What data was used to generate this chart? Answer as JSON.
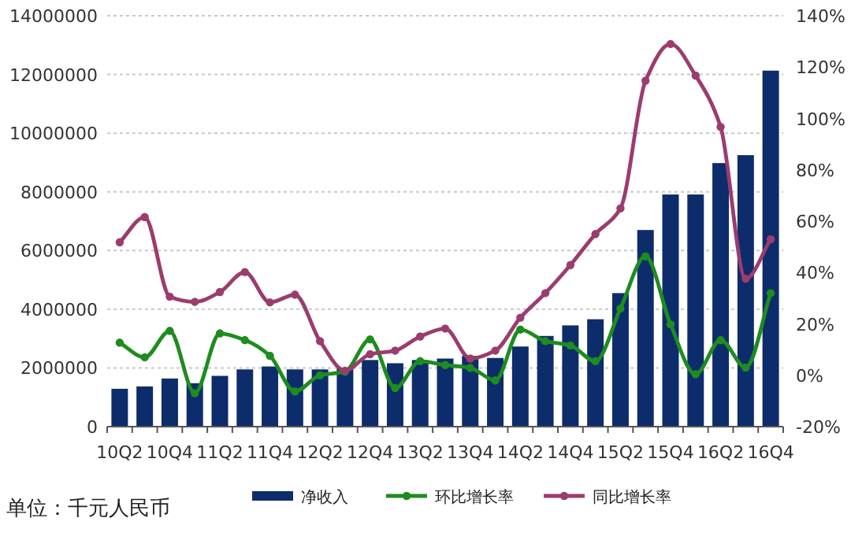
{
  "chart_data": {
    "type": "bar",
    "categories": [
      "10Q2",
      null,
      "10Q4",
      null,
      "11Q2",
      null,
      "11Q4",
      null,
      "12Q2",
      null,
      "12Q4",
      null,
      "13Q2",
      null,
      "13Q4",
      null,
      "14Q2",
      null,
      "14Q4",
      null,
      "15Q2",
      null,
      "15Q4",
      null,
      "16Q2",
      null,
      "16Q4"
    ],
    "series": [
      {
        "name": "净收入",
        "color": "#0d2c6b",
        "values": [
          1290000,
          1370000,
          1640000,
          1480000,
          1730000,
          1950000,
          2050000,
          1950000,
          1950000,
          2000000,
          2270000,
          2160000,
          2270000,
          2320000,
          2410000,
          2340000,
          2730000,
          3090000,
          3450000,
          3660000,
          4550000,
          6700000,
          7910000,
          7910000,
          8980000,
          9250000,
          12130000
        ]
      },
      {
        "name": "环比增长率",
        "type": "line",
        "axis": "y2",
        "color": "#1e8c1e",
        "values": [
          12.7,
          7,
          17.3,
          -7,
          16.3,
          13.7,
          7.6,
          -6.3,
          0,
          1.4,
          14,
          -5,
          5.5,
          4,
          2.9,
          -2,
          17.8,
          13.3,
          11.6,
          5.5,
          26,
          46.3,
          19.8,
          0.4,
          13.7,
          3,
          32
        ]
      },
      {
        "name": "同比增长率",
        "type": "line",
        "axis": "y2",
        "color": "#9b3c6e",
        "values": [
          51.8,
          61.6,
          30.6,
          28.6,
          32.4,
          40.2,
          28.4,
          31.4,
          13.3,
          1.8,
          8.2,
          9.6,
          15.1,
          18.2,
          6.5,
          9.6,
          22.4,
          32,
          42.9,
          55,
          65,
          114.7,
          129,
          116.7,
          96.7,
          37.6,
          53
        ]
      }
    ],
    "ylim": [
      0,
      14000000
    ],
    "yticks": [
      0,
      2000000,
      4000000,
      6000000,
      8000000,
      10000000,
      12000000,
      14000000
    ],
    "y2lim": [
      -20,
      140
    ],
    "y2ticks": [
      {
        "value": -20,
        "label": "-20%"
      },
      {
        "value": 0,
        "label": "0%"
      },
      {
        "value": 20,
        "label": "20%"
      },
      {
        "value": 40,
        "label": "40%"
      },
      {
        "value": 60,
        "label": "60%"
      },
      {
        "value": 80,
        "label": "80%"
      },
      {
        "value": 100,
        "label": "100%"
      },
      {
        "value": 120,
        "label": "120%"
      },
      {
        "value": 140,
        "label": "140%"
      }
    ],
    "grid": "y",
    "legend": "bottom",
    "marker": "circle",
    "annotations": [
      "单位：千元人民币"
    ]
  }
}
